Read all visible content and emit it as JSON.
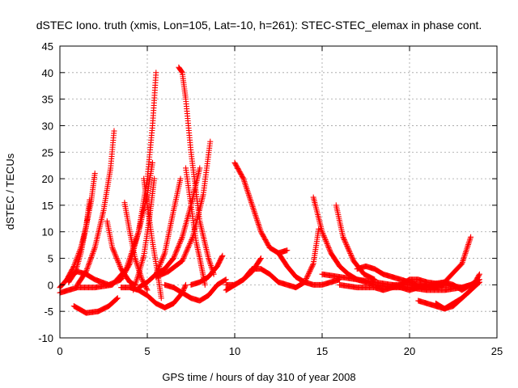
{
  "chart_data": {
    "type": "scatter",
    "title": "dSTEC Iono. truth (xmis, Lon=105, Lat=-10, h=261): STEC-STEC_elemax in phase cont.",
    "xlabel": "GPS time / hours of day 310 of year 2008",
    "ylabel": "dSTEC  / TECUs",
    "xlim": [
      0,
      25
    ],
    "ylim": [
      -10,
      45
    ],
    "xticks": [
      0,
      5,
      10,
      15,
      20,
      25
    ],
    "yticks": [
      -10,
      -5,
      0,
      5,
      10,
      15,
      20,
      25,
      30,
      35,
      40,
      45
    ],
    "xtick_labels": [
      "0",
      "5",
      "10",
      "15",
      "20",
      "25"
    ],
    "ytick_labels": [
      "-10",
      "-5",
      "0",
      "5",
      "10",
      "15",
      "20",
      "25",
      "30",
      "35",
      "40",
      "45"
    ],
    "grid": true,
    "marker": "+",
    "color": "#ff0000",
    "series": [
      {
        "x": [
          0.0,
          0.4,
          0.8,
          1.2,
          1.5,
          1.8,
          2.0
        ],
        "y": [
          -0.5,
          1.0,
          3.5,
          7.0,
          11.0,
          16.0,
          21.0
        ]
      },
      {
        "x": [
          0.5,
          0.9,
          1.2,
          1.5,
          1.7
        ],
        "y": [
          0.5,
          2.5,
          6.0,
          11.0,
          16.0
        ]
      },
      {
        "x": [
          1.0,
          1.5,
          2.0,
          2.5,
          2.9,
          3.1
        ],
        "y": [
          0.0,
          2.5,
          7.0,
          14.0,
          22.0,
          29.0
        ]
      },
      {
        "x": [
          0.0,
          0.5,
          1.0,
          2.0,
          3.0,
          3.8,
          4.5,
          5.0,
          5.3,
          5.5
        ],
        "y": [
          -1.5,
          -1.0,
          -0.5,
          -0.5,
          0.0,
          3.0,
          10.0,
          20.0,
          30.0,
          40.0
        ]
      },
      {
        "x": [
          0.8,
          1.5,
          2.2,
          2.8,
          3.3
        ],
        "y": [
          -4.0,
          -5.3,
          -5.0,
          -4.0,
          -2.5
        ]
      },
      {
        "x": [
          0.5,
          1.0,
          1.5,
          2.0,
          2.8,
          3.5,
          4.0,
          4.5,
          5.0,
          5.3
        ],
        "y": [
          1.5,
          2.5,
          2.0,
          1.0,
          0.0,
          1.0,
          4.0,
          10.0,
          17.0,
          23.0
        ]
      },
      {
        "x": [
          2.7,
          3.0,
          3.5,
          4.0,
          4.3
        ],
        "y": [
          12.0,
          7.0,
          3.0,
          0.5,
          0.0
        ]
      },
      {
        "x": [
          3.7,
          4.0,
          4.3,
          4.7,
          5.0
        ],
        "y": [
          15.5,
          10.0,
          5.0,
          1.0,
          -1.0
        ]
      },
      {
        "x": [
          4.8,
          5.0,
          5.3,
          5.6,
          5.8
        ],
        "y": [
          20.0,
          15.0,
          8.0,
          2.0,
          -2.5
        ]
      },
      {
        "x": [
          4.5,
          5.0,
          5.5,
          6.0,
          6.5,
          6.9
        ],
        "y": [
          -0.5,
          0.5,
          2.0,
          6.0,
          14.0,
          20.0
        ]
      },
      {
        "x": [
          3.5,
          4.0,
          4.5,
          5.0,
          5.5,
          6.0,
          6.5,
          7.0,
          7.2
        ],
        "y": [
          -0.5,
          -0.5,
          -1.0,
          -2.0,
          -3.5,
          -4.3,
          -3.5,
          -1.5,
          0.0
        ]
      },
      {
        "x": [
          4.2,
          4.5,
          4.8,
          5.1,
          5.4
        ],
        "y": [
          -1.0,
          2.0,
          5.5,
          12.0,
          20.0
        ]
      },
      {
        "x": [
          6.8,
          7.0,
          7.2,
          7.5,
          8.0,
          8.5,
          8.8
        ],
        "y": [
          41.0,
          40.0,
          35.0,
          25.0,
          12.0,
          5.0,
          2.0
        ]
      },
      {
        "x": [
          5.5,
          6.0,
          6.5,
          7.0,
          7.5,
          8.0
        ],
        "y": [
          2.0,
          3.0,
          5.0,
          9.0,
          15.0,
          22.0
        ]
      },
      {
        "x": [
          5.5,
          6.2,
          7.0,
          7.6,
          8.2,
          8.6
        ],
        "y": [
          1.5,
          2.5,
          4.5,
          9.0,
          17.0,
          27.0
        ]
      },
      {
        "x": [
          7.2,
          7.5,
          7.8,
          8.0,
          8.3
        ],
        "y": [
          22.0,
          15.0,
          8.0,
          5.0,
          0.0
        ]
      },
      {
        "x": [
          6.0,
          6.5,
          7.0,
          7.5,
          8.0,
          8.5,
          9.0,
          9.5
        ],
        "y": [
          0.0,
          -0.5,
          -1.5,
          -2.5,
          -3.0,
          -2.0,
          0.0,
          1.0
        ]
      },
      {
        "x": [
          7.5,
          8.0,
          8.5,
          9.0,
          9.3
        ],
        "y": [
          0.0,
          0.5,
          1.5,
          3.5,
          5.5
        ]
      },
      {
        "x": [
          9.5,
          10.0,
          10.5,
          11.0,
          11.5
        ],
        "y": [
          0.0,
          0.0,
          1.0,
          2.5,
          5.0
        ]
      },
      {
        "x": [
          10.0,
          10.5,
          11.0,
          11.5,
          12.0,
          12.5,
          13.0
        ],
        "y": [
          23.0,
          20.0,
          15.0,
          10.0,
          7.0,
          6.0,
          6.5
        ]
      },
      {
        "x": [
          9.5,
          10.0,
          10.5,
          11.0,
          11.5,
          12.0,
          12.5,
          13.0,
          13.5,
          14.0,
          14.5,
          14.8
        ],
        "y": [
          -1.0,
          0.0,
          1.0,
          3.0,
          3.0,
          2.0,
          0.5,
          0.0,
          -0.5,
          0.5,
          4.0,
          10.5
        ]
      },
      {
        "x": [
          12.5,
          13.0,
          13.5,
          14.0,
          14.5,
          15.0,
          15.5,
          16.0
        ],
        "y": [
          6.0,
          3.5,
          1.5,
          0.5,
          0.0,
          0.0,
          0.5,
          1.0
        ]
      },
      {
        "x": [
          14.5,
          15.0,
          15.5,
          16.0,
          16.5,
          17.0,
          18.0,
          19.0,
          20.0,
          21.0,
          22.0,
          23.0,
          24.0
        ],
        "y": [
          16.5,
          10.0,
          6.0,
          3.5,
          2.0,
          1.0,
          0.0,
          -0.5,
          -0.5,
          -1.0,
          -1.0,
          -0.5,
          0.5
        ]
      },
      {
        "x": [
          15.8,
          16.2,
          16.8,
          17.4,
          18.0
        ],
        "y": [
          15.0,
          9.0,
          4.5,
          2.0,
          1.0
        ]
      },
      {
        "x": [
          15.0,
          16.0,
          17.0,
          18.0,
          19.0,
          20.0,
          21.0,
          22.0,
          23.0,
          23.5
        ],
        "y": [
          2.0,
          1.5,
          1.0,
          0.5,
          0.0,
          0.0,
          -0.5,
          0.5,
          4.0,
          9.0
        ]
      },
      {
        "x": [
          17.0,
          17.5,
          18.0,
          18.5,
          19.0,
          19.5,
          20.0,
          20.5,
          21.0,
          21.5,
          22.0
        ],
        "y": [
          3.0,
          3.5,
          3.0,
          2.0,
          1.5,
          1.0,
          0.5,
          0.0,
          -0.5,
          -0.5,
          0.0
        ]
      },
      {
        "x": [
          16.0,
          17.0,
          18.0,
          18.5,
          19.0,
          19.5,
          20.0,
          20.5,
          21.0,
          22.0,
          23.0,
          24.0
        ],
        "y": [
          0.0,
          -0.5,
          -0.5,
          -1.0,
          -0.5,
          0.0,
          1.0,
          1.0,
          0.5,
          0.0,
          -0.5,
          0.5
        ]
      },
      {
        "x": [
          19.0,
          20.0,
          20.5,
          21.0,
          22.0,
          22.5,
          23.0,
          24.0
        ],
        "y": [
          0.0,
          -1.0,
          -0.5,
          0.0,
          0.5,
          0.0,
          -1.0,
          1.0
        ]
      },
      {
        "x": [
          20.5,
          21.0,
          21.5,
          22.0,
          22.5,
          23.0,
          23.5,
          24.0
        ],
        "y": [
          -3.0,
          -3.5,
          -4.0,
          -4.5,
          -4.0,
          -2.5,
          -1.0,
          0.5
        ]
      },
      {
        "x": [
          21.5,
          22.0,
          22.5,
          23.0,
          23.5,
          24.0
        ],
        "y": [
          -3.5,
          -4.5,
          -3.5,
          -2.5,
          -1.0,
          2.0
        ]
      }
    ]
  }
}
